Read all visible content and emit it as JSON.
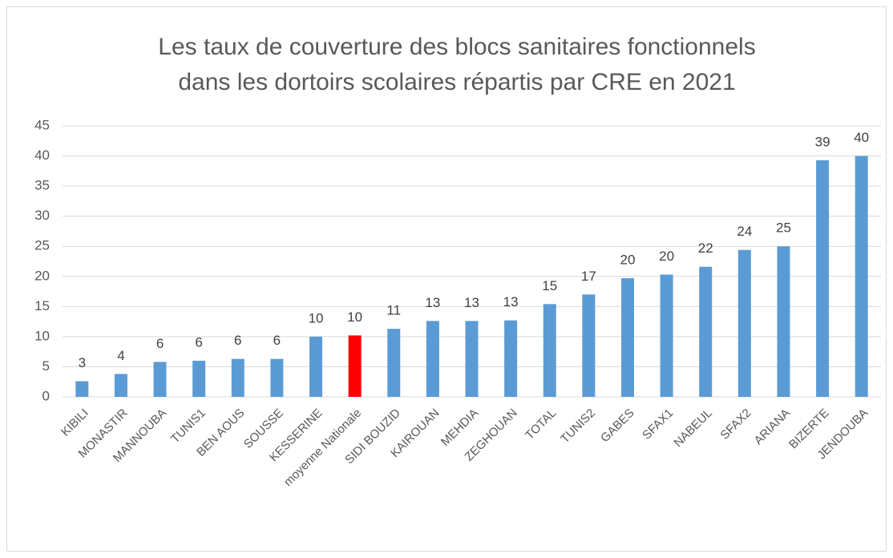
{
  "chart_data": {
    "type": "bar",
    "title": [
      "Les taux de couverture des blocs sanitaires fonctionnels",
      "dans les dortoirs scolaires répartis par CRE en 2021"
    ],
    "categories": [
      "KIBILI",
      "MONASTIR",
      "MANNOUBA",
      "TUNIS1",
      "BEN AOUS",
      "SOUSSE",
      "KESSERINE",
      "moyenne Nationale",
      "SIDI BOUZID",
      "KAIROUAN",
      "MEHDIA",
      "ZEGHOUAN",
      "TOTAL",
      "TUNIS2",
      "GABES",
      "SFAX1",
      "NABEUL",
      "SFAX2",
      "ARIANA",
      "BIZERTE",
      "JENDOUBA"
    ],
    "values": [
      2.6,
      3.8,
      5.8,
      6.0,
      6.3,
      6.3,
      10.0,
      10.2,
      11.3,
      12.6,
      12.6,
      12.7,
      15.4,
      17.0,
      19.7,
      20.3,
      21.6,
      24.4,
      25.0,
      39.3,
      40.0
    ],
    "value_labels": [
      "3",
      "4",
      "6",
      "6",
      "6",
      "6",
      "10",
      "10",
      "11",
      "13",
      "13",
      "13",
      "15",
      "17",
      "20",
      "20",
      "22",
      "24",
      "25",
      "39",
      "40"
    ],
    "colors": [
      "#5b9bd5",
      "#5b9bd5",
      "#5b9bd5",
      "#5b9bd5",
      "#5b9bd5",
      "#5b9bd5",
      "#5b9bd5",
      "#ff0000",
      "#5b9bd5",
      "#5b9bd5",
      "#5b9bd5",
      "#5b9bd5",
      "#5b9bd5",
      "#5b9bd5",
      "#5b9bd5",
      "#5b9bd5",
      "#5b9bd5",
      "#5b9bd5",
      "#5b9bd5",
      "#5b9bd5",
      "#5b9bd5"
    ],
    "ylim": [
      0,
      45
    ],
    "yticks": [
      0,
      5,
      10,
      15,
      20,
      25,
      30,
      35,
      40,
      45
    ],
    "grid": true
  }
}
